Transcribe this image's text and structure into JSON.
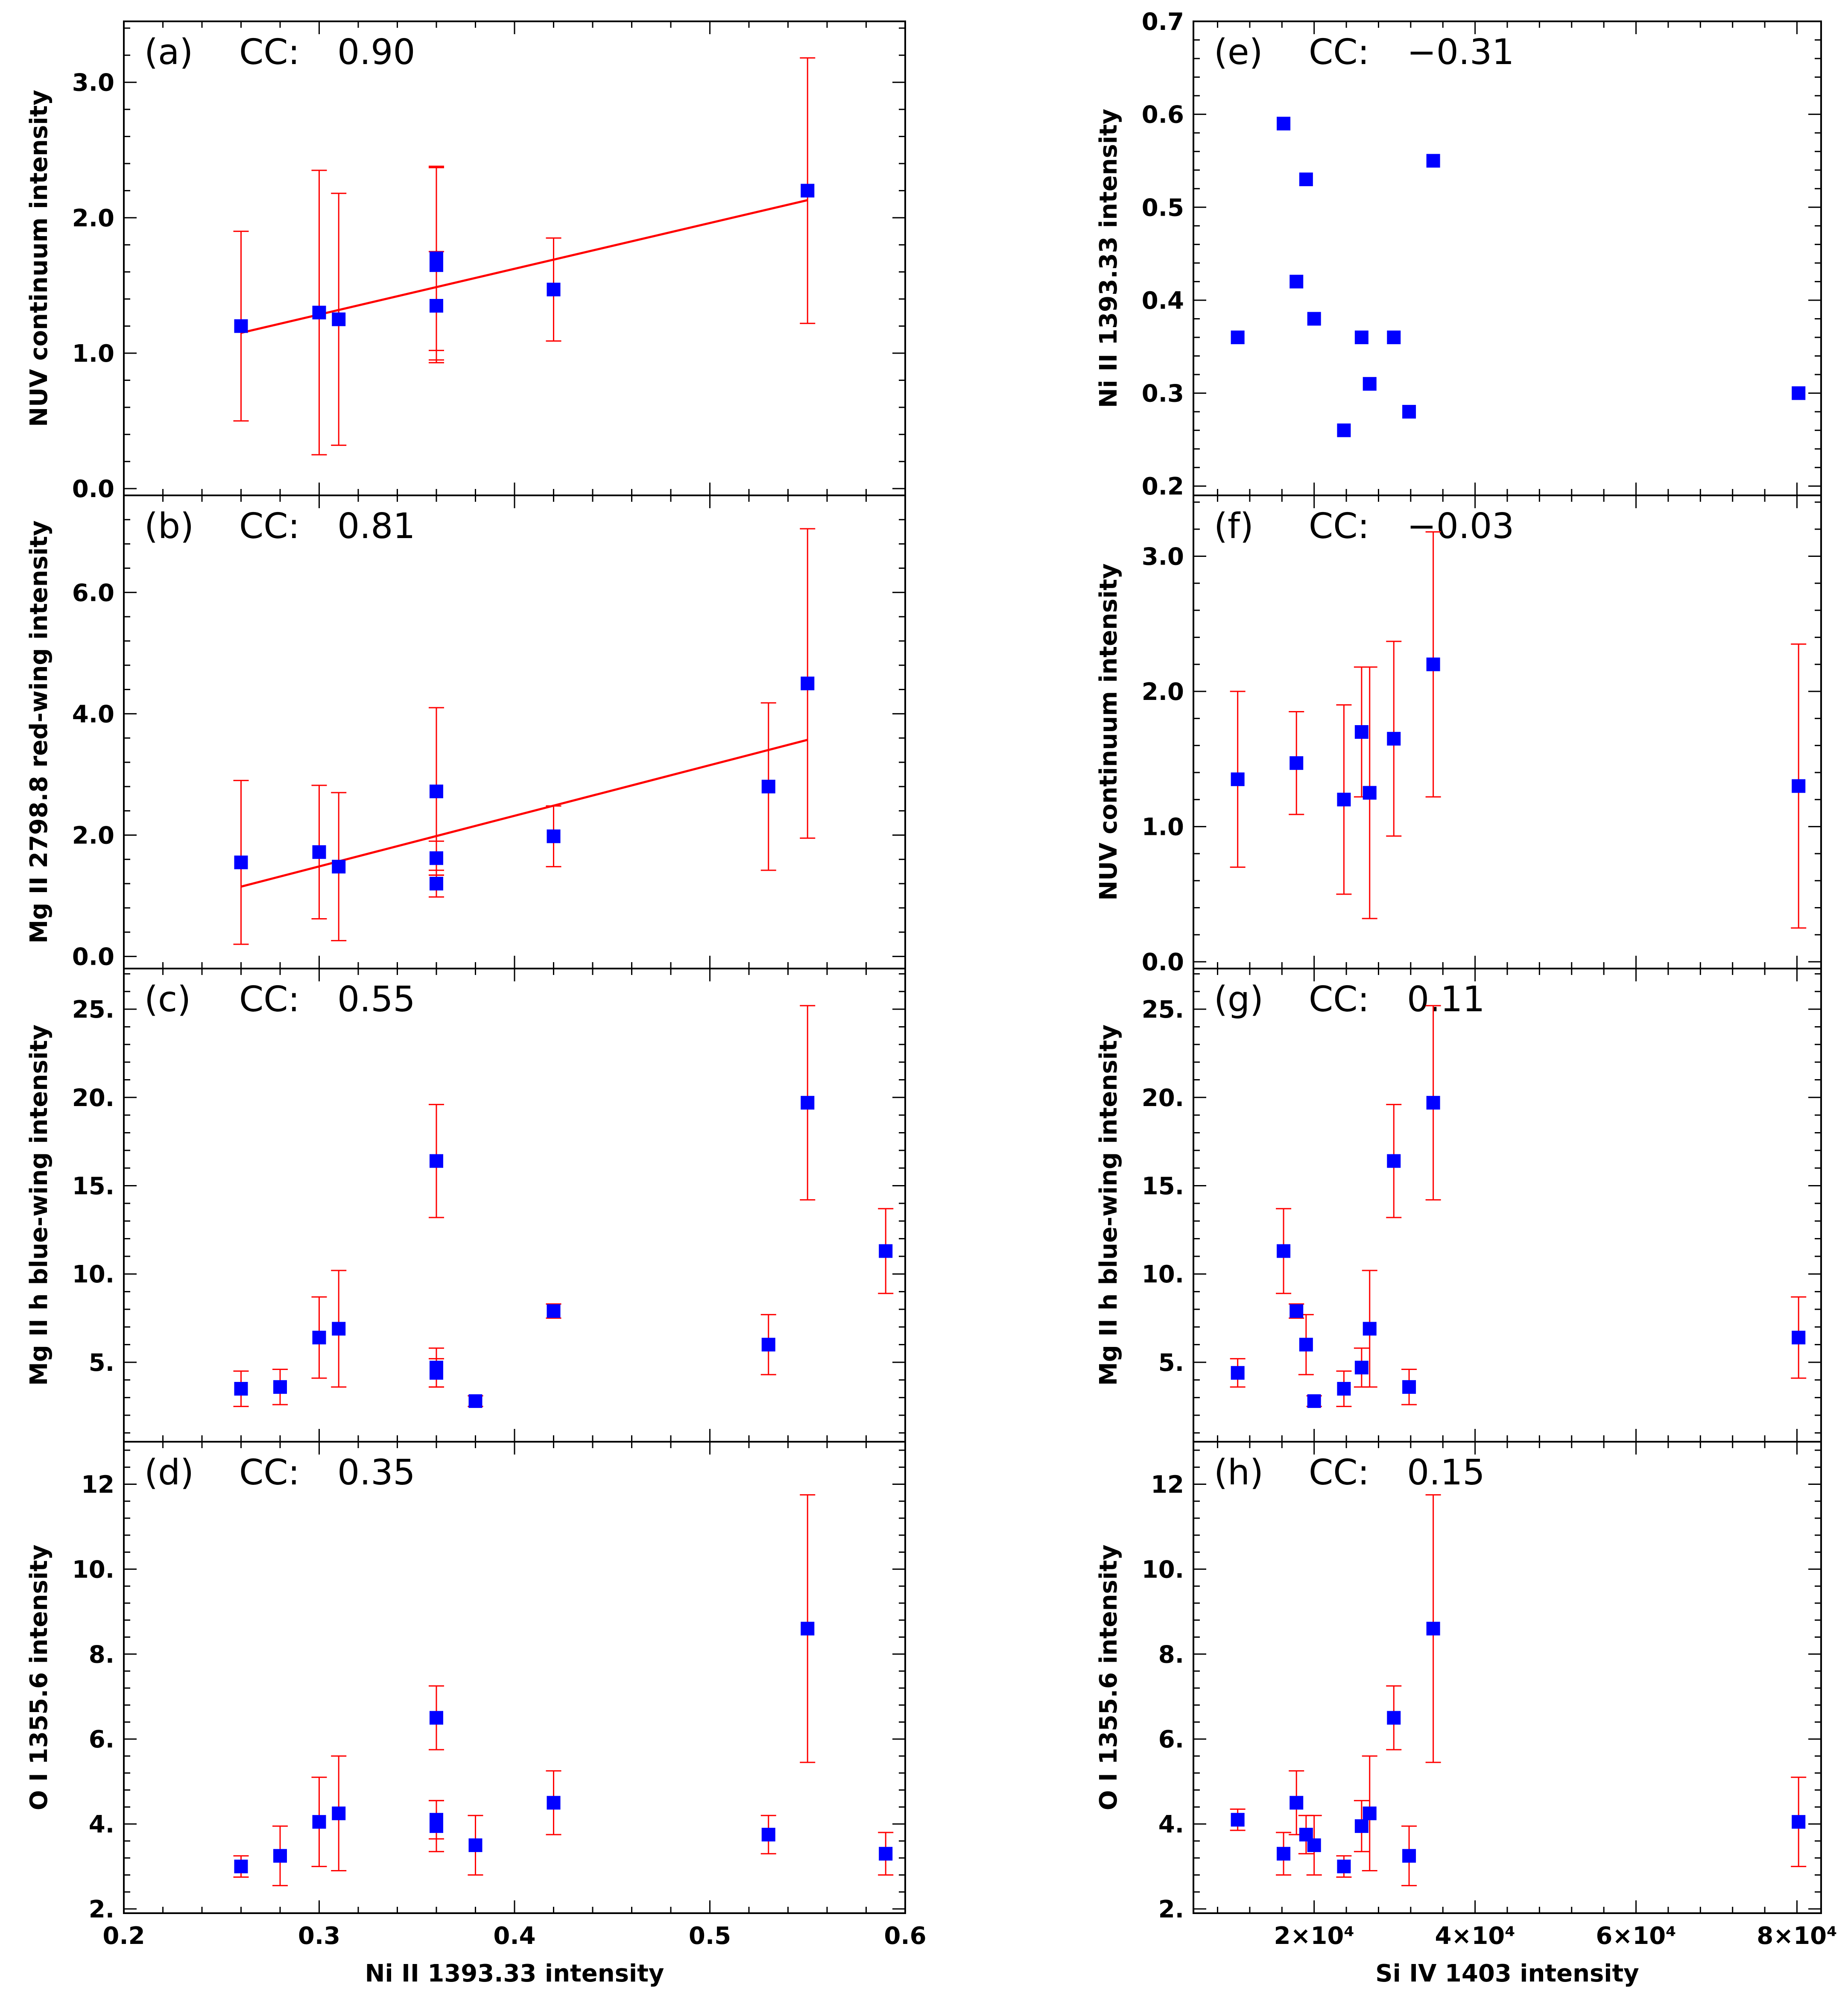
{
  "colors": {
    "marker": "#0000ff",
    "errorbar": "#ff0000",
    "fit": "#ff0000",
    "axes": "#000000"
  },
  "chart_data": [
    {
      "id": "a",
      "panel_label": "(a)",
      "cc_label": "CC:",
      "cc_value": "0.90",
      "type": "scatter",
      "xlabel": "",
      "ylabel": "NUV continuum intensity",
      "xlim": [
        0.2,
        0.6
      ],
      "ylim": [
        -0.05,
        3.45
      ],
      "xticks": [
        0.2,
        0.3,
        0.4,
        0.5,
        0.6
      ],
      "xticklabels": [],
      "yticks": [
        0,
        1,
        2,
        3
      ],
      "yticklabels": [
        "0.0",
        "1.0",
        "2.0",
        "3.0"
      ],
      "points": [
        {
          "x": 0.26,
          "y": 1.2,
          "err": 0.7
        },
        {
          "x": 0.3,
          "y": 1.3,
          "err": 1.05
        },
        {
          "x": 0.31,
          "y": 1.25,
          "err": 0.93
        },
        {
          "x": 0.36,
          "y": 1.7,
          "err": 0.68
        },
        {
          "x": 0.36,
          "y": 1.65,
          "err": 0.72
        },
        {
          "x": 0.36,
          "y": 1.35,
          "err": 0.4
        },
        {
          "x": 0.42,
          "y": 1.47,
          "err": 0.38
        },
        {
          "x": 0.55,
          "y": 2.2,
          "err": 0.98
        }
      ],
      "fit": {
        "x": [
          0.26,
          0.55
        ],
        "y": [
          1.15,
          2.13
        ]
      }
    },
    {
      "id": "b",
      "panel_label": "(b)",
      "cc_label": "CC:",
      "cc_value": "0.81",
      "type": "scatter",
      "xlabel": "",
      "ylabel": "Mg II 2798.8 red-wing intensity",
      "xlim": [
        0.2,
        0.6
      ],
      "ylim": [
        -0.2,
        7.6
      ],
      "xticks": [
        0.2,
        0.3,
        0.4,
        0.5,
        0.6
      ],
      "xticklabels": [],
      "yticks": [
        0,
        2,
        4,
        6
      ],
      "yticklabels": [
        "0.0",
        "2.0",
        "4.0",
        "6.0"
      ],
      "points": [
        {
          "x": 0.26,
          "y": 1.55,
          "err": 1.35
        },
        {
          "x": 0.3,
          "y": 1.72,
          "err": 1.1
        },
        {
          "x": 0.31,
          "y": 1.48,
          "err": 1.22
        },
        {
          "x": 0.36,
          "y": 2.72,
          "err": 1.38
        },
        {
          "x": 0.36,
          "y": 1.62,
          "err": 0.28
        },
        {
          "x": 0.36,
          "y": 1.2,
          "err": 0.22
        },
        {
          "x": 0.42,
          "y": 1.98,
          "err": 0.5
        },
        {
          "x": 0.53,
          "y": 2.8,
          "err": 1.38
        },
        {
          "x": 0.55,
          "y": 4.5,
          "err": 2.55
        }
      ],
      "fit": {
        "x": [
          0.26,
          0.55
        ],
        "y": [
          1.15,
          3.57
        ]
      }
    },
    {
      "id": "c",
      "panel_label": "(c)",
      "cc_label": "CC:",
      "cc_value": "0.55",
      "type": "scatter",
      "xlabel": "",
      "ylabel": "Mg II h blue-wing intensity",
      "xlim": [
        0.2,
        0.6
      ],
      "ylim": [
        0.5,
        27.3
      ],
      "xticks": [
        0.2,
        0.3,
        0.4,
        0.5,
        0.6
      ],
      "xticklabels": [],
      "yticks": [
        5,
        10,
        15,
        20,
        25
      ],
      "yticklabels": [
        "5.",
        "10.",
        "15.",
        "20.",
        "25."
      ],
      "points": [
        {
          "x": 0.26,
          "y": 3.5,
          "err": 1.0
        },
        {
          "x": 0.28,
          "y": 3.6,
          "err": 1.0
        },
        {
          "x": 0.3,
          "y": 6.4,
          "err": 2.3
        },
        {
          "x": 0.31,
          "y": 6.9,
          "err": 3.3
        },
        {
          "x": 0.36,
          "y": 16.4,
          "err": 3.2
        },
        {
          "x": 0.36,
          "y": 4.7,
          "err": 1.1
        },
        {
          "x": 0.36,
          "y": 4.4,
          "err": 0.8
        },
        {
          "x": 0.38,
          "y": 2.8,
          "err": 0.3
        },
        {
          "x": 0.42,
          "y": 7.9,
          "err": 0.4
        },
        {
          "x": 0.53,
          "y": 6.0,
          "err": 1.7
        },
        {
          "x": 0.55,
          "y": 19.7,
          "err": 5.5
        },
        {
          "x": 0.59,
          "y": 11.3,
          "err": 2.4
        }
      ]
    },
    {
      "id": "d",
      "panel_label": "(d)",
      "cc_label": "CC:",
      "cc_value": "0.35",
      "type": "scatter",
      "xlabel": "Ni II 1393.33 intensity",
      "ylabel": "O I 1355.6 intensity",
      "xlim": [
        0.2,
        0.6
      ],
      "ylim": [
        1.9,
        13.0
      ],
      "xticks": [
        0.2,
        0.3,
        0.4,
        0.5,
        0.6
      ],
      "xticklabels": [
        "0.2",
        "0.3",
        "0.4",
        "0.5",
        "0.6"
      ],
      "yticks": [
        2,
        4,
        6,
        8,
        10,
        12
      ],
      "yticklabels": [
        "2.",
        "4.",
        "6.",
        "8.",
        "10.",
        "12"
      ],
      "points": [
        {
          "x": 0.26,
          "y": 3.0,
          "err": 0.25
        },
        {
          "x": 0.28,
          "y": 3.25,
          "err": 0.7
        },
        {
          "x": 0.3,
          "y": 4.05,
          "err": 1.05
        },
        {
          "x": 0.31,
          "y": 4.25,
          "err": 1.35
        },
        {
          "x": 0.36,
          "y": 6.5,
          "err": 0.75
        },
        {
          "x": 0.36,
          "y": 4.1,
          "err": 0.45
        },
        {
          "x": 0.36,
          "y": 3.95,
          "err": 0.6
        },
        {
          "x": 0.38,
          "y": 3.5,
          "err": 0.7
        },
        {
          "x": 0.42,
          "y": 4.5,
          "err": 0.75
        },
        {
          "x": 0.53,
          "y": 3.75,
          "err": 0.45
        },
        {
          "x": 0.55,
          "y": 8.6,
          "err": 3.15
        },
        {
          "x": 0.59,
          "y": 3.3,
          "err": 0.5
        }
      ]
    },
    {
      "id": "e",
      "panel_label": "(e)",
      "cc_label": "CC:",
      "cc_value": "−0.31",
      "type": "scatter",
      "xlabel": "",
      "ylabel": "Ni II 1393.33 intensity",
      "xlim": [
        5000,
        83000
      ],
      "ylim": [
        0.19,
        0.7
      ],
      "xticks": [
        20000,
        40000,
        60000,
        80000
      ],
      "xticklabels": [],
      "yticks": [
        0.2,
        0.3,
        0.4,
        0.5,
        0.6,
        0.7
      ],
      "yticklabels": [
        "0.2",
        "0.3",
        "0.4",
        "0.5",
        "0.6",
        "0.7"
      ],
      "points": [
        {
          "x": 10500,
          "y": 0.36
        },
        {
          "x": 16200,
          "y": 0.59
        },
        {
          "x": 17800,
          "y": 0.42
        },
        {
          "x": 19000,
          "y": 0.53
        },
        {
          "x": 20000,
          "y": 0.38
        },
        {
          "x": 23700,
          "y": 0.26
        },
        {
          "x": 25900,
          "y": 0.36
        },
        {
          "x": 26900,
          "y": 0.31
        },
        {
          "x": 29900,
          "y": 0.36
        },
        {
          "x": 31800,
          "y": 0.28
        },
        {
          "x": 34800,
          "y": 0.55
        },
        {
          "x": 80200,
          "y": 0.3
        }
      ]
    },
    {
      "id": "f",
      "panel_label": "(f)",
      "cc_label": "CC:",
      "cc_value": "−0.03",
      "type": "scatter",
      "xlabel": "",
      "ylabel": "NUV continuum intensity",
      "xlim": [
        5000,
        83000
      ],
      "ylim": [
        -0.05,
        3.45
      ],
      "xticks": [
        20000,
        40000,
        60000,
        80000
      ],
      "xticklabels": [],
      "yticks": [
        0,
        1,
        2,
        3
      ],
      "yticklabels": [
        "0.0",
        "1.0",
        "2.0",
        "3.0"
      ],
      "points": [
        {
          "x": 10500,
          "y": 1.35,
          "err": 0.65
        },
        {
          "x": 17800,
          "y": 1.47,
          "err": 0.38
        },
        {
          "x": 23700,
          "y": 1.2,
          "err": 0.7
        },
        {
          "x": 25900,
          "y": 1.7,
          "err": 0.48
        },
        {
          "x": 26900,
          "y": 1.25,
          "err": 0.93
        },
        {
          "x": 29900,
          "y": 1.65,
          "err": 0.72
        },
        {
          "x": 34800,
          "y": 2.2,
          "err": 0.98
        },
        {
          "x": 80200,
          "y": 1.3,
          "err": 1.05
        }
      ]
    },
    {
      "id": "g",
      "panel_label": "(g)",
      "cc_label": "CC:",
      "cc_value": "0.11",
      "type": "scatter",
      "xlabel": "",
      "ylabel": "Mg II h blue-wing intensity",
      "xlim": [
        5000,
        83000
      ],
      "ylim": [
        0.5,
        27.3
      ],
      "xticks": [
        20000,
        40000,
        60000,
        80000
      ],
      "xticklabels": [],
      "yticks": [
        5,
        10,
        15,
        20,
        25
      ],
      "yticklabels": [
        "5.",
        "10.",
        "15.",
        "20.",
        "25."
      ],
      "points": [
        {
          "x": 10500,
          "y": 4.4,
          "err": 0.8
        },
        {
          "x": 16200,
          "y": 11.3,
          "err": 2.4
        },
        {
          "x": 17800,
          "y": 7.9,
          "err": 0.4
        },
        {
          "x": 19000,
          "y": 6.0,
          "err": 1.7
        },
        {
          "x": 20000,
          "y": 2.8,
          "err": 0.3
        },
        {
          "x": 23700,
          "y": 3.5,
          "err": 1.0
        },
        {
          "x": 25900,
          "y": 4.7,
          "err": 1.1
        },
        {
          "x": 26900,
          "y": 6.9,
          "err": 3.3
        },
        {
          "x": 29900,
          "y": 16.4,
          "err": 3.2
        },
        {
          "x": 31800,
          "y": 3.6,
          "err": 1.0
        },
        {
          "x": 34800,
          "y": 19.7,
          "err": 5.5
        },
        {
          "x": 80200,
          "y": 6.4,
          "err": 2.3
        }
      ]
    },
    {
      "id": "h",
      "panel_label": "(h)",
      "cc_label": "CC:",
      "cc_value": "0.15",
      "type": "scatter",
      "xlabel": "Si IV 1403 intensity",
      "ylabel": "O I 1355.6 intensity",
      "xlim": [
        5000,
        83000
      ],
      "ylim": [
        1.9,
        13.0
      ],
      "xticks": [
        20000,
        40000,
        60000,
        80000
      ],
      "xticklabels": [
        "2×10⁴",
        "4×10⁴",
        "6×10⁴",
        "8×10⁴"
      ],
      "yticks": [
        2,
        4,
        6,
        8,
        10,
        12
      ],
      "yticklabels": [
        "2.",
        "4.",
        "6.",
        "8.",
        "10.",
        "12"
      ],
      "points": [
        {
          "x": 10500,
          "y": 4.1,
          "err": 0.25
        },
        {
          "x": 16200,
          "y": 3.3,
          "err": 0.5
        },
        {
          "x": 17800,
          "y": 4.5,
          "err": 0.75
        },
        {
          "x": 19000,
          "y": 3.75,
          "err": 0.45
        },
        {
          "x": 20000,
          "y": 3.5,
          "err": 0.7
        },
        {
          "x": 23700,
          "y": 3.0,
          "err": 0.25
        },
        {
          "x": 25900,
          "y": 3.95,
          "err": 0.6
        },
        {
          "x": 26900,
          "y": 4.25,
          "err": 1.35
        },
        {
          "x": 29900,
          "y": 6.5,
          "err": 0.75
        },
        {
          "x": 31800,
          "y": 3.25,
          "err": 0.7
        },
        {
          "x": 34800,
          "y": 8.6,
          "err": 3.15
        },
        {
          "x": 80200,
          "y": 4.05,
          "err": 1.05
        }
      ]
    }
  ]
}
